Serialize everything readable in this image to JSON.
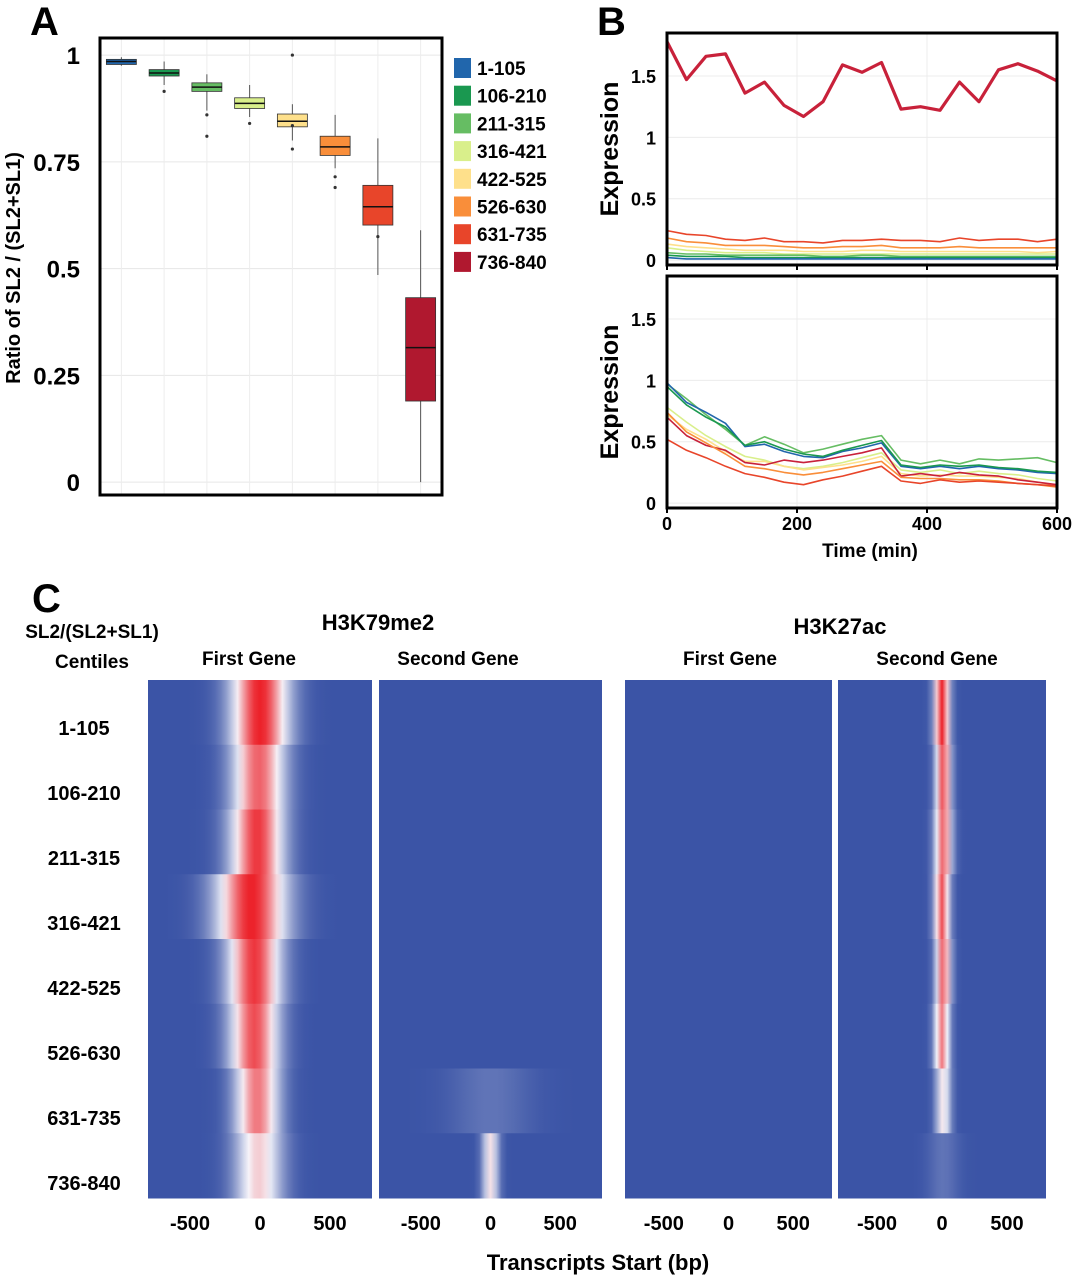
{
  "panels": {
    "a_label": "A",
    "b_label": "B",
    "c_label": "C"
  },
  "panel_a": {
    "ylabel": "Ratio of SL2 / (SL2+SL1)",
    "yticks": [
      "0",
      "0.25",
      "0.5",
      "0.75",
      "1"
    ],
    "ytick_values": [
      0,
      0.25,
      0.5,
      0.75,
      1
    ],
    "legend": [
      {
        "label": "1-105",
        "color": "#2166ac"
      },
      {
        "label": "106-210",
        "color": "#1a9850"
      },
      {
        "label": "211-315",
        "color": "#66bd63"
      },
      {
        "label": "316-421",
        "color": "#d9ef8b"
      },
      {
        "label": "422-525",
        "color": "#fee08b"
      },
      {
        "label": "526-630",
        "color": "#f98e3a"
      },
      {
        "label": "631-735",
        "color": "#e8452a"
      },
      {
        "label": "736-840",
        "color": "#b0182f"
      }
    ]
  },
  "panel_b": {
    "ylabel_top": "Expression",
    "ylabel_bottom": "Expression",
    "xlabel": "Time (min)",
    "yticks": [
      "0",
      "0.5",
      "1",
      "1.5"
    ],
    "ytick_values": [
      0,
      0.5,
      1,
      1.5
    ],
    "xticks": [
      "0",
      "200",
      "400",
      "600"
    ],
    "xtick_values": [
      0,
      200,
      400,
      600
    ]
  },
  "panel_c": {
    "rows_header_1": "SL2/(SL2+SL1)",
    "rows_header_2": "Centiles",
    "mark1_title": "H3K79me2",
    "mark2_title": "H3K27ac",
    "first_gene": "First Gene",
    "second_gene": "Second Gene",
    "row_labels": [
      "1-105",
      "106-210",
      "211-315",
      "316-421",
      "422-525",
      "526-630",
      "631-735",
      "736-840"
    ],
    "xticks": [
      "-500",
      "0",
      "500"
    ],
    "xtick_values": [
      -500,
      0,
      500
    ],
    "xlabel": "Transcripts Start (bp)",
    "heatmaps": [
      {
        "mark": "H3K79me2",
        "gene": "First Gene",
        "rows": [
          {
            "center": 0,
            "width": 140,
            "intensity": 1.0
          },
          {
            "center": -10,
            "width": 130,
            "intensity": 0.85
          },
          {
            "center": -20,
            "width": 130,
            "intensity": 0.95
          },
          {
            "center": -60,
            "width": 170,
            "intensity": 1.0
          },
          {
            "center": -40,
            "width": 130,
            "intensity": 0.95
          },
          {
            "center": -40,
            "width": 120,
            "intensity": 0.9
          },
          {
            "center": -20,
            "width": 110,
            "intensity": 0.8
          },
          {
            "center": -10,
            "width": 120,
            "intensity": 0.6
          }
        ]
      },
      {
        "mark": "H3K79me2",
        "gene": "Second Gene",
        "rows": [
          {
            "center": 0,
            "width": 0,
            "intensity": 0
          },
          {
            "center": 0,
            "width": 0,
            "intensity": 0
          },
          {
            "center": 0,
            "width": 0,
            "intensity": 0
          },
          {
            "center": 0,
            "width": 0,
            "intensity": 0
          },
          {
            "center": 0,
            "width": 0,
            "intensity": 0
          },
          {
            "center": 0,
            "width": 0,
            "intensity": 0
          },
          {
            "center": 0,
            "width": 200,
            "intensity": 0.1
          },
          {
            "center": 0,
            "width": 40,
            "intensity": 0.55
          }
        ]
      },
      {
        "mark": "H3K27ac",
        "gene": "First Gene",
        "rows": [
          {
            "center": 0,
            "width": 0,
            "intensity": 0
          },
          {
            "center": 0,
            "width": 0,
            "intensity": 0
          },
          {
            "center": 0,
            "width": 0,
            "intensity": 0
          },
          {
            "center": 0,
            "width": 0,
            "intensity": 0
          },
          {
            "center": 0,
            "width": 0,
            "intensity": 0
          },
          {
            "center": 0,
            "width": 0,
            "intensity": 0
          },
          {
            "center": 0,
            "width": 0,
            "intensity": 0
          },
          {
            "center": 0,
            "width": 0,
            "intensity": 0
          }
        ]
      },
      {
        "mark": "H3K27ac",
        "gene": "Second Gene",
        "rows": [
          {
            "center": 0,
            "width": 40,
            "intensity": 1.0
          },
          {
            "center": 10,
            "width": 40,
            "intensity": 0.9
          },
          {
            "center": 10,
            "width": 45,
            "intensity": 0.85
          },
          {
            "center": 0,
            "width": 40,
            "intensity": 0.9
          },
          {
            "center": 10,
            "width": 40,
            "intensity": 0.85
          },
          {
            "center": 0,
            "width": 40,
            "intensity": 0.8
          },
          {
            "center": 10,
            "width": 40,
            "intensity": 0.55
          },
          {
            "center": 10,
            "width": 80,
            "intensity": 0.1
          }
        ]
      }
    ]
  },
  "chart_data": [
    {
      "type": "box",
      "ylabel": "Ratio of SL2 / (SL2+SL1)",
      "ylim": [
        -0.03,
        1.04
      ],
      "grid": true,
      "legend_position": "right",
      "categories": [
        "1-105",
        "106-210",
        "211-315",
        "316-421",
        "422-525",
        "526-630",
        "631-735",
        "736-840"
      ],
      "boxes": [
        {
          "whislo": 0.975,
          "q1": 0.978,
          "med": 0.985,
          "q3": 0.99,
          "whishi": 0.995,
          "fliers": []
        },
        {
          "whislo": 0.93,
          "q1": 0.951,
          "med": 0.958,
          "q3": 0.966,
          "whishi": 0.985,
          "fliers": [
            0.915
          ]
        },
        {
          "whislo": 0.87,
          "q1": 0.915,
          "med": 0.925,
          "q3": 0.935,
          "whishi": 0.955,
          "fliers": [
            0.81,
            0.86
          ]
        },
        {
          "whislo": 0.855,
          "q1": 0.875,
          "med": 0.887,
          "q3": 0.9,
          "whishi": 0.93,
          "fliers": [
            0.84
          ]
        },
        {
          "whislo": 0.8,
          "q1": 0.832,
          "med": 0.845,
          "q3": 0.862,
          "whishi": 0.885,
          "fliers": [
            1.0,
            0.78,
            0.835
          ]
        },
        {
          "whislo": 0.735,
          "q1": 0.765,
          "med": 0.785,
          "q3": 0.81,
          "whishi": 0.86,
          "fliers": [
            0.69,
            0.715
          ]
        },
        {
          "whislo": 0.485,
          "q1": 0.602,
          "med": 0.645,
          "q3": 0.695,
          "whishi": 0.805,
          "fliers": [
            0.575
          ]
        },
        {
          "whislo": 0.0,
          "q1": 0.19,
          "med": 0.315,
          "q3": 0.432,
          "whishi": 0.59,
          "fliers": []
        }
      ]
    },
    {
      "type": "line",
      "ylabel": "Expression",
      "xlim": [
        0,
        600
      ],
      "ylim": [
        -0.04,
        1.85
      ],
      "grid": true,
      "x": [
        0,
        30,
        60,
        90,
        120,
        150,
        180,
        210,
        240,
        270,
        300,
        330,
        360,
        390,
        420,
        450,
        480,
        510,
        540,
        570,
        600
      ],
      "series": [
        {
          "color": "#c8213a",
          "values": [
            1.78,
            1.47,
            1.66,
            1.68,
            1.36,
            1.45,
            1.26,
            1.17,
            1.29,
            1.59,
            1.53,
            1.61,
            1.23,
            1.25,
            1.22,
            1.45,
            1.29,
            1.55,
            1.6,
            1.54,
            1.46
          ]
        },
        {
          "color": "#e8452a",
          "values": [
            0.24,
            0.21,
            0.2,
            0.17,
            0.16,
            0.18,
            0.15,
            0.15,
            0.14,
            0.16,
            0.16,
            0.17,
            0.16,
            0.16,
            0.15,
            0.18,
            0.16,
            0.17,
            0.17,
            0.15,
            0.17
          ]
        },
        {
          "color": "#f98e3a",
          "values": [
            0.18,
            0.15,
            0.14,
            0.12,
            0.12,
            0.12,
            0.11,
            0.1,
            0.1,
            0.11,
            0.11,
            0.12,
            0.1,
            0.1,
            0.1,
            0.11,
            0.1,
            0.1,
            0.1,
            0.1,
            0.1
          ]
        },
        {
          "color": "#fee08b",
          "values": [
            0.13,
            0.11,
            0.1,
            0.09,
            0.08,
            0.08,
            0.08,
            0.07,
            0.07,
            0.07,
            0.08,
            0.08,
            0.07,
            0.07,
            0.07,
            0.07,
            0.07,
            0.07,
            0.07,
            0.06,
            0.07
          ]
        },
        {
          "color": "#d9ef8b",
          "values": [
            0.1,
            0.08,
            0.07,
            0.06,
            0.06,
            0.06,
            0.05,
            0.05,
            0.05,
            0.05,
            0.05,
            0.05,
            0.05,
            0.05,
            0.05,
            0.05,
            0.05,
            0.05,
            0.05,
            0.05,
            0.05
          ]
        },
        {
          "color": "#66bd63",
          "values": [
            0.06,
            0.05,
            0.05,
            0.04,
            0.04,
            0.04,
            0.04,
            0.04,
            0.03,
            0.03,
            0.04,
            0.04,
            0.03,
            0.03,
            0.03,
            0.03,
            0.03,
            0.03,
            0.03,
            0.03,
            0.03
          ]
        },
        {
          "color": "#1a9850",
          "values": [
            0.04,
            0.03,
            0.03,
            0.03,
            0.02,
            0.02,
            0.02,
            0.02,
            0.02,
            0.02,
            0.02,
            0.02,
            0.02,
            0.02,
            0.02,
            0.02,
            0.02,
            0.02,
            0.02,
            0.02,
            0.02
          ]
        },
        {
          "color": "#2166ac",
          "values": [
            0.02,
            0.01,
            0.01,
            0.01,
            0.01,
            0.01,
            0.01,
            0.01,
            0.01,
            0.01,
            0.01,
            0.01,
            0.01,
            0.01,
            0.01,
            0.01,
            0.01,
            0.01,
            0.01,
            0.01,
            0.01
          ]
        }
      ]
    },
    {
      "type": "line",
      "ylabel": "Expression",
      "xlabel": "Time (min)",
      "xlim": [
        0,
        600
      ],
      "ylim": [
        -0.04,
        1.85
      ],
      "grid": true,
      "x": [
        0,
        30,
        60,
        90,
        120,
        150,
        180,
        210,
        240,
        270,
        300,
        330,
        360,
        390,
        420,
        450,
        480,
        510,
        540,
        570,
        600
      ],
      "series": [
        {
          "color": "#66bd63",
          "values": [
            0.97,
            0.85,
            0.72,
            0.6,
            0.47,
            0.54,
            0.48,
            0.41,
            0.44,
            0.48,
            0.52,
            0.55,
            0.35,
            0.32,
            0.35,
            0.32,
            0.36,
            0.35,
            0.36,
            0.37,
            0.33
          ]
        },
        {
          "color": "#2166ac",
          "values": [
            0.98,
            0.82,
            0.74,
            0.65,
            0.46,
            0.48,
            0.42,
            0.38,
            0.37,
            0.42,
            0.45,
            0.49,
            0.3,
            0.28,
            0.3,
            0.28,
            0.3,
            0.28,
            0.27,
            0.25,
            0.24
          ]
        },
        {
          "color": "#1a9850",
          "values": [
            0.95,
            0.8,
            0.7,
            0.62,
            0.47,
            0.5,
            0.44,
            0.4,
            0.38,
            0.43,
            0.47,
            0.51,
            0.31,
            0.29,
            0.31,
            0.3,
            0.31,
            0.29,
            0.28,
            0.26,
            0.25
          ]
        },
        {
          "color": "#d9ef8b",
          "values": [
            0.78,
            0.66,
            0.55,
            0.46,
            0.38,
            0.35,
            0.3,
            0.28,
            0.3,
            0.33,
            0.37,
            0.41,
            0.27,
            0.25,
            0.27,
            0.24,
            0.26,
            0.24,
            0.23,
            0.2,
            0.18
          ]
        },
        {
          "color": "#fee08b",
          "values": [
            0.72,
            0.6,
            0.52,
            0.42,
            0.34,
            0.34,
            0.3,
            0.27,
            0.29,
            0.31,
            0.34,
            0.38,
            0.24,
            0.22,
            0.23,
            0.22,
            0.22,
            0.21,
            0.2,
            0.17,
            0.14
          ]
        },
        {
          "color": "#c8213a",
          "values": [
            0.7,
            0.55,
            0.47,
            0.43,
            0.33,
            0.31,
            0.35,
            0.33,
            0.35,
            0.38,
            0.41,
            0.45,
            0.22,
            0.24,
            0.22,
            0.25,
            0.23,
            0.22,
            0.19,
            0.17,
            0.15
          ]
        },
        {
          "color": "#f98e3a",
          "values": [
            0.74,
            0.58,
            0.49,
            0.4,
            0.3,
            0.28,
            0.25,
            0.23,
            0.25,
            0.28,
            0.31,
            0.34,
            0.21,
            0.2,
            0.2,
            0.19,
            0.19,
            0.18,
            0.16,
            0.15,
            0.13
          ]
        },
        {
          "color": "#e8452a",
          "values": [
            0.52,
            0.43,
            0.37,
            0.3,
            0.24,
            0.21,
            0.17,
            0.15,
            0.19,
            0.22,
            0.26,
            0.3,
            0.18,
            0.16,
            0.19,
            0.17,
            0.18,
            0.17,
            0.16,
            0.15,
            0.14
          ]
        }
      ]
    }
  ]
}
